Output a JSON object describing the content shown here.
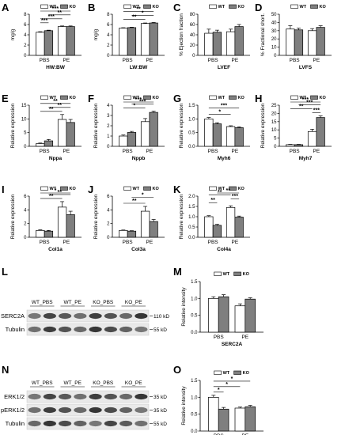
{
  "legend": {
    "wt": "WT",
    "ko": "KO"
  },
  "colors": {
    "wt": "#ffffff",
    "ko": "#7f7f7f",
    "stroke": "#000000"
  },
  "chart_data": [
    {
      "id": "A",
      "type": "bar",
      "ylabel": "mg/g",
      "xlabel": "HW:BW",
      "categories": [
        "PBS",
        "PE"
      ],
      "ylim": [
        0,
        8
      ],
      "ticks": [
        0,
        2,
        4,
        6,
        8
      ],
      "series": [
        {
          "name": "WT",
          "values": [
            4.5,
            5.6
          ],
          "err": [
            0.1,
            0.12
          ]
        },
        {
          "name": "KO",
          "values": [
            4.8,
            5.6
          ],
          "err": [
            0.1,
            0.12
          ]
        }
      ],
      "sig": [
        {
          "a": 0,
          "b": 1,
          "label": "***"
        },
        {
          "a": 0,
          "b": 2,
          "label": "***"
        },
        {
          "a": 0,
          "b": 3,
          "label": "***"
        },
        {
          "a": 1,
          "b": 3,
          "label": "**"
        }
      ]
    },
    {
      "id": "B",
      "type": "bar",
      "ylabel": "mg/g",
      "xlabel": "LW:BW",
      "categories": [
        "PBS",
        "PE"
      ],
      "ylim": [
        0,
        8
      ],
      "ticks": [
        0,
        2,
        4,
        6,
        8
      ],
      "series": [
        {
          "name": "WT",
          "values": [
            5.3,
            6.2
          ],
          "err": [
            0.08,
            0.1
          ]
        },
        {
          "name": "KO",
          "values": [
            5.4,
            6.3
          ],
          "err": [
            0.08,
            0.1
          ]
        }
      ],
      "sig": [
        {
          "a": 0,
          "b": 2,
          "label": "**"
        },
        {
          "a": 0,
          "b": 3,
          "label": "**"
        },
        {
          "a": 1,
          "b": 3,
          "label": "*"
        }
      ]
    },
    {
      "id": "C",
      "type": "bar",
      "ylabel": "% Ejection fraction",
      "xlabel": "LVEF",
      "categories": [
        "PBS",
        "PE"
      ],
      "ylim": [
        0,
        80
      ],
      "ticks": [
        0,
        20,
        40,
        60,
        80
      ],
      "series": [
        {
          "name": "WT",
          "values": [
            43,
            46
          ],
          "err": [
            8,
            5
          ]
        },
        {
          "name": "KO",
          "values": [
            45,
            56
          ],
          "err": [
            4,
            4
          ]
        }
      ],
      "sig": []
    },
    {
      "id": "D",
      "type": "bar",
      "ylabel": "% Fractional short.",
      "xlabel": "LVFS",
      "categories": [
        "PBS",
        "PE"
      ],
      "ylim": [
        0,
        50
      ],
      "ticks": [
        0,
        10,
        20,
        30,
        40,
        50
      ],
      "series": [
        {
          "name": "WT",
          "values": [
            32,
            30
          ],
          "err": [
            4,
            2.5
          ]
        },
        {
          "name": "KO",
          "values": [
            31,
            34
          ],
          "err": [
            2,
            2
          ]
        }
      ],
      "sig": []
    },
    {
      "id": "E",
      "type": "bar",
      "ylabel": "Relative expression",
      "xlabel": "Nppa",
      "categories": [
        "PBS",
        "PE"
      ],
      "ylim": [
        0,
        15
      ],
      "ticks": [
        0,
        5,
        10,
        15
      ],
      "series": [
        {
          "name": "WT",
          "values": [
            1,
            9.8
          ],
          "err": [
            0.2,
            1.8
          ]
        },
        {
          "name": "KO",
          "values": [
            2,
            8.7
          ],
          "err": [
            0.5,
            1.1
          ]
        }
      ],
      "sig": [
        {
          "a": 0,
          "b": 2,
          "label": "**"
        },
        {
          "a": 0,
          "b": 3,
          "label": "**"
        },
        {
          "a": 1,
          "b": 3,
          "label": "**"
        }
      ]
    },
    {
      "id": "F",
      "type": "bar",
      "ylabel": "Relative expression",
      "xlabel": "Nppb",
      "categories": [
        "PBS",
        "PE"
      ],
      "ylim": [
        0,
        4
      ],
      "ticks": [
        0,
        1,
        2,
        3,
        4
      ],
      "series": [
        {
          "name": "WT",
          "values": [
            1,
            2.4
          ],
          "err": [
            0.1,
            0.3
          ]
        },
        {
          "name": "KO",
          "values": [
            1.35,
            3.3
          ],
          "err": [
            0.1,
            0.12
          ]
        }
      ],
      "sig": [
        {
          "a": 0,
          "b": 2,
          "label": "*"
        },
        {
          "a": 0,
          "b": 3,
          "label": "***"
        },
        {
          "a": 1,
          "b": 3,
          "label": "***"
        }
      ]
    },
    {
      "id": "G",
      "type": "bar",
      "ylabel": "Relative expression",
      "xlabel": "Myh6",
      "categories": [
        "PBS",
        "PE"
      ],
      "ylim": [
        0,
        1.5
      ],
      "ticks": [
        0.0,
        0.5,
        1.0,
        1.5
      ],
      "series": [
        {
          "name": "WT",
          "values": [
            1.0,
            0.72
          ],
          "err": [
            0.05,
            0.03
          ]
        },
        {
          "name": "KO",
          "values": [
            0.82,
            0.68
          ],
          "err": [
            0.04,
            0.03
          ]
        }
      ],
      "sig": [
        {
          "a": 0,
          "b": 2,
          "label": "*"
        },
        {
          "a": 0,
          "b": 3,
          "label": "***"
        }
      ]
    },
    {
      "id": "H",
      "type": "bar",
      "ylabel": "Relative expression",
      "xlabel": "Myh7",
      "categories": [
        "PBS",
        "PE"
      ],
      "ylim": [
        0,
        25
      ],
      "ticks": [
        0,
        5,
        10,
        15,
        20,
        25
      ],
      "series": [
        {
          "name": "WT",
          "values": [
            1,
            9
          ],
          "err": [
            0.2,
            1.4
          ]
        },
        {
          "name": "KO",
          "values": [
            1,
            17.5
          ],
          "err": [
            0.2,
            1.0
          ]
        }
      ],
      "sig": [
        {
          "a": 0,
          "b": 2,
          "label": "**"
        },
        {
          "a": 0,
          "b": 3,
          "label": "***"
        },
        {
          "a": 1,
          "b": 3,
          "label": "***"
        },
        {
          "a": 2,
          "b": 3,
          "label": "***"
        }
      ]
    },
    {
      "id": "I",
      "type": "bar",
      "ylabel": "Relative expression",
      "xlabel": "Col1a",
      "categories": [
        "PBS",
        "PE"
      ],
      "ylim": [
        0,
        6
      ],
      "ticks": [
        0,
        2,
        4,
        6
      ],
      "series": [
        {
          "name": "WT",
          "values": [
            1,
            4.4
          ],
          "err": [
            0.08,
            0.8
          ]
        },
        {
          "name": "KO",
          "values": [
            0.9,
            3.3
          ],
          "err": [
            0.1,
            0.5
          ]
        }
      ],
      "sig": [
        {
          "a": 0,
          "b": 2,
          "label": "**"
        },
        {
          "a": 0,
          "b": 3,
          "label": "*"
        },
        {
          "a": 1,
          "b": 3,
          "label": "**"
        }
      ]
    },
    {
      "id": "J",
      "type": "bar",
      "ylabel": "Relative expression",
      "xlabel": "Col3a",
      "categories": [
        "PBS",
        "PE"
      ],
      "ylim": [
        0,
        6
      ],
      "ticks": [
        0,
        2,
        4,
        6
      ],
      "series": [
        {
          "name": "WT",
          "values": [
            1,
            3.8
          ],
          "err": [
            0.06,
            0.7
          ]
        },
        {
          "name": "KO",
          "values": [
            0.9,
            2.3
          ],
          "err": [
            0.06,
            0.3
          ]
        }
      ],
      "sig": [
        {
          "a": 0,
          "b": 2,
          "label": "**"
        },
        {
          "a": 1,
          "b": 3,
          "label": "*"
        }
      ]
    },
    {
      "id": "K",
      "type": "bar",
      "ylabel": "Relative expression",
      "xlabel": "Col4a",
      "categories": [
        "PBS",
        "PE"
      ],
      "ylim": [
        0,
        2.0
      ],
      "ticks": [
        0.0,
        0.5,
        1.0,
        1.5,
        2.0
      ],
      "series": [
        {
          "name": "WT",
          "values": [
            1.0,
            1.45
          ],
          "err": [
            0.05,
            0.08
          ]
        },
        {
          "name": "KO",
          "values": [
            0.58,
            0.98
          ],
          "err": [
            0.05,
            0.05
          ]
        }
      ],
      "sig": [
        {
          "a": 0,
          "b": 1,
          "label": "**"
        },
        {
          "a": 0,
          "b": 2,
          "label": "**"
        },
        {
          "a": 1,
          "b": 3,
          "label": "**"
        },
        {
          "a": 2,
          "b": 3,
          "label": "***"
        }
      ]
    },
    {
      "id": "M",
      "type": "bar",
      "ylabel": "Relative intensity",
      "xlabel": "SERC2A",
      "categories": [
        "PBS",
        "PE"
      ],
      "ylim": [
        0,
        1.5
      ],
      "ticks": [
        0.0,
        0.5,
        1.0,
        1.5
      ],
      "series": [
        {
          "name": "WT",
          "values": [
            1.0,
            0.78
          ],
          "err": [
            0.05,
            0.06
          ]
        },
        {
          "name": "KO",
          "values": [
            1.05,
            0.98
          ],
          "err": [
            0.06,
            0.04
          ]
        }
      ],
      "sig": []
    },
    {
      "id": "O",
      "type": "bar",
      "ylabel": "Relative intensity",
      "xlabel": "pERK1/2:ERK1/2",
      "categories": [
        "PBS",
        "PE"
      ],
      "ylim": [
        0,
        1.5
      ],
      "ticks": [
        0.0,
        0.5,
        1.0,
        1.5
      ],
      "series": [
        {
          "name": "WT",
          "values": [
            1.0,
            0.68
          ],
          "err": [
            0.06,
            0.03
          ]
        },
        {
          "name": "KO",
          "values": [
            0.65,
            0.72
          ],
          "err": [
            0.05,
            0.04
          ]
        }
      ],
      "sig": [
        {
          "a": 0,
          "b": 1,
          "label": "*"
        },
        {
          "a": 0,
          "b": 2,
          "label": "*"
        },
        {
          "a": 0,
          "b": 3,
          "label": "*"
        }
      ]
    }
  ],
  "blots": {
    "L": {
      "lanes": [
        "WT_PBS",
        "WT_PE",
        "KO_PBS",
        "KO_PE"
      ],
      "rows": [
        {
          "name": "SERC2A",
          "kd": "110 kD"
        },
        {
          "name": "Tubulin",
          "kd": "55 kD"
        }
      ]
    },
    "N": {
      "lanes": [
        "WT_PBS",
        "WT_PE",
        "KO_PBS",
        "KO_PE"
      ],
      "rows": [
        {
          "name": "ERK1/2",
          "kd": "35 kD"
        },
        {
          "name": "pERK1/2",
          "kd": "35 kD"
        },
        {
          "name": "Tubulin",
          "kd": "55 kD"
        }
      ]
    }
  }
}
